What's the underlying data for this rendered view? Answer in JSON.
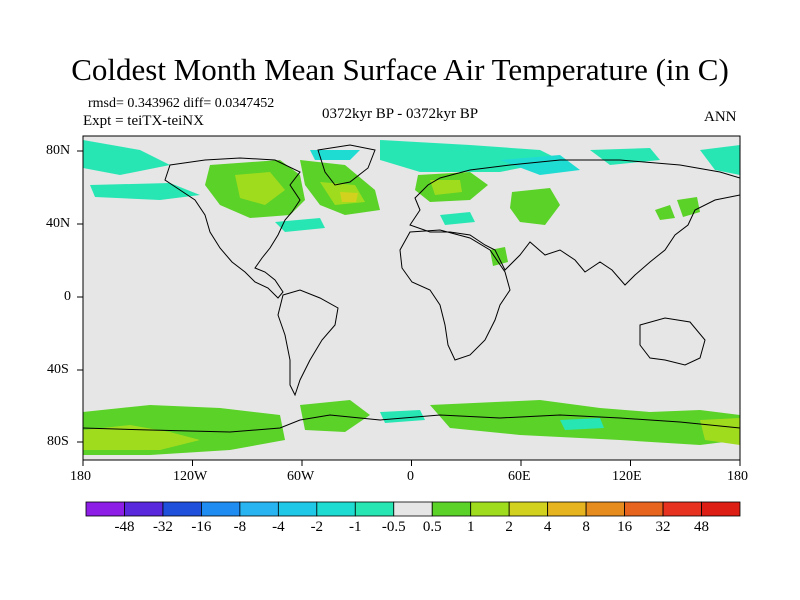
{
  "header": {
    "title": "Coldest Month Mean Surface Air Temperature (in C)",
    "stats": "rmsd= 0.343962 diff= 0.0347452",
    "experiment": "Expt = teiTX-teiNX",
    "period": "0372kyr BP - 0372kyr BP",
    "season": "ANN"
  },
  "map": {
    "lon_ticks": [
      "180",
      "120W",
      "60W",
      "0",
      "60E",
      "120E",
      "180"
    ],
    "lat_ticks": [
      "80N",
      "40N",
      "0",
      "40S",
      "80S"
    ],
    "background_color": "#e6e6e6",
    "coast_color": "#000000"
  },
  "colorbar": {
    "labels": [
      "-48",
      "-32",
      "-16",
      "-8",
      "-4",
      "-2",
      "-1",
      "-0.5",
      "0.5",
      "1",
      "2",
      "4",
      "8",
      "16",
      "32",
      "48"
    ],
    "colors": [
      "#8c1ee6",
      "#5a28dc",
      "#1e50dc",
      "#1e8cf0",
      "#28b4f0",
      "#1ec8e6",
      "#1edcd2",
      "#28e6b4",
      "#e6e6e6",
      "#5ad228",
      "#a0dc1e",
      "#d2d21e",
      "#e6b41e",
      "#e68c1e",
      "#e6641e",
      "#e6321e",
      "#dc1e14"
    ]
  }
}
